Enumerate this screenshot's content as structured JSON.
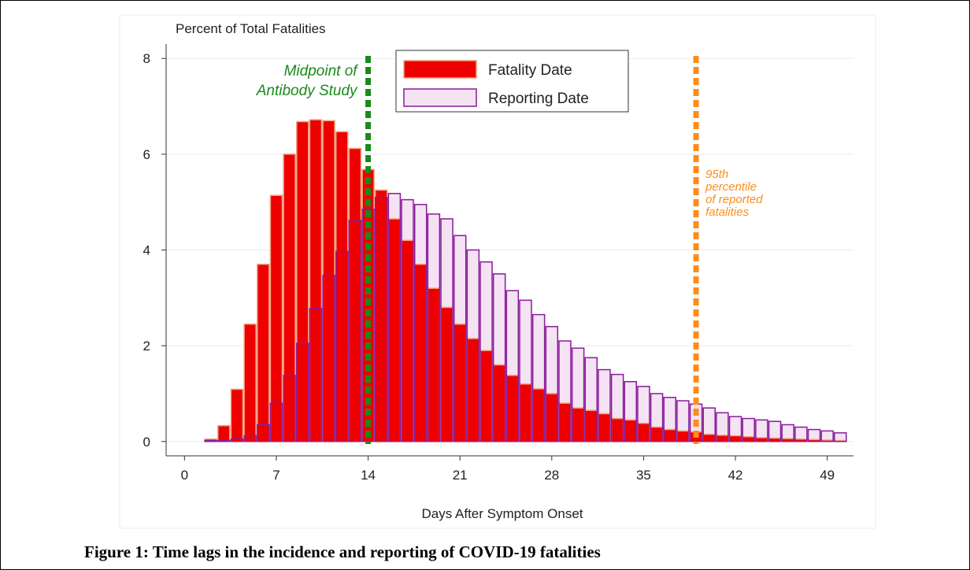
{
  "chart_data": {
    "type": "bar",
    "caption": "Figure 1: Time lags in the incidence and reporting of COVID-19 fatalities",
    "ylabel": "Percent of Total Fatalities",
    "xlabel": "Days After Symptom Onset",
    "x": [
      2,
      3,
      4,
      5,
      6,
      7,
      8,
      9,
      10,
      11,
      12,
      13,
      14,
      15,
      16,
      17,
      18,
      19,
      20,
      21,
      22,
      23,
      24,
      25,
      26,
      27,
      28,
      29,
      30,
      31,
      32,
      33,
      34,
      35,
      36,
      37,
      38,
      39,
      40,
      41,
      42,
      43,
      44,
      45,
      46,
      47,
      48,
      49,
      50
    ],
    "series": [
      {
        "name": "Fatality Date",
        "color": "#ee0000",
        "edge": "#f0a080",
        "values": [
          0.05,
          0.33,
          1.09,
          2.45,
          3.7,
          5.14,
          6.0,
          6.68,
          6.72,
          6.7,
          6.47,
          6.12,
          5.68,
          5.25,
          4.65,
          4.2,
          3.7,
          3.2,
          2.8,
          2.45,
          2.15,
          1.9,
          1.6,
          1.38,
          1.2,
          1.1,
          1.0,
          0.8,
          0.7,
          0.65,
          0.58,
          0.48,
          0.45,
          0.38,
          0.3,
          0.25,
          0.22,
          0.2,
          0.15,
          0.13,
          0.12,
          0.1,
          0.08,
          0.07,
          0.06,
          0.05,
          0.04,
          0.03,
          0.02
        ]
      },
      {
        "name": "Reporting Date",
        "color": "#f3e3f3",
        "edge": "#8b1a9a",
        "values": [
          0.02,
          0.02,
          0.05,
          0.12,
          0.35,
          0.8,
          1.38,
          2.05,
          2.78,
          3.47,
          3.97,
          4.62,
          4.85,
          5.1,
          5.18,
          5.05,
          4.95,
          4.75,
          4.65,
          4.3,
          4.0,
          3.75,
          3.5,
          3.15,
          2.95,
          2.65,
          2.4,
          2.1,
          1.95,
          1.75,
          1.5,
          1.4,
          1.25,
          1.15,
          1.0,
          0.92,
          0.85,
          0.78,
          0.7,
          0.6,
          0.52,
          0.48,
          0.45,
          0.42,
          0.35,
          0.3,
          0.25,
          0.22,
          0.18
        ]
      }
    ],
    "vlines": [
      {
        "x": 14,
        "color": "#1a8a1a",
        "label": [
          "Midpoint of",
          "Antibody Study"
        ]
      },
      {
        "x": 39,
        "color": "#ff8c1a",
        "label": [
          "95th",
          "percentile",
          "of reported",
          "fatalities"
        ]
      }
    ],
    "xlim": [
      -1.4,
      51
    ],
    "ylim": [
      -0.3,
      8.3
    ],
    "xticks": [
      0,
      7,
      14,
      21,
      28,
      35,
      42,
      49
    ],
    "yticks": [
      0,
      2,
      4,
      6,
      8
    ],
    "grid": true,
    "legend": "top"
  }
}
